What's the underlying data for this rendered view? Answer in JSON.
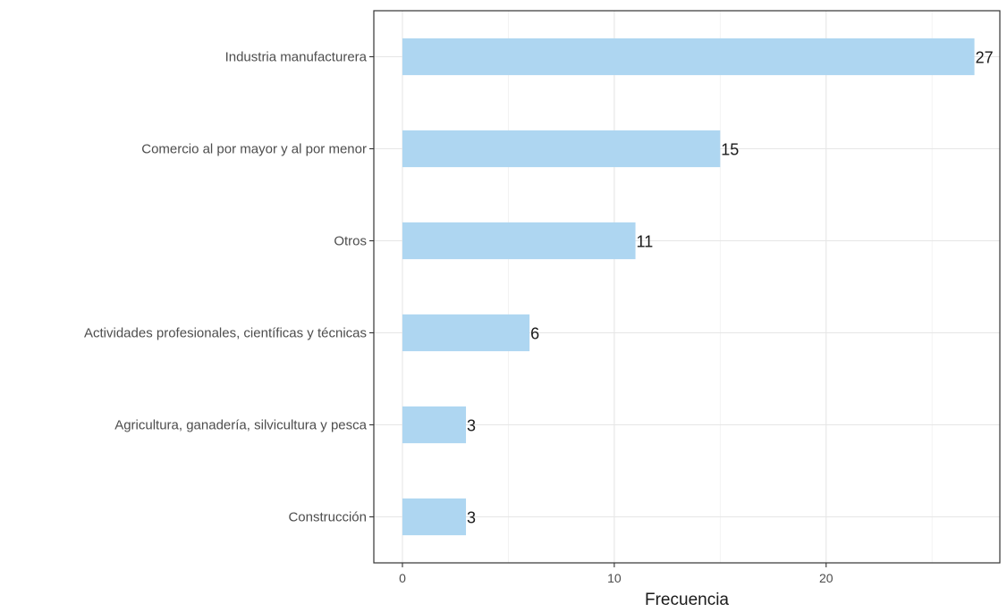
{
  "chart_data": {
    "type": "bar",
    "orientation": "horizontal",
    "categories": [
      "Industria manufacturera",
      "Comercio al por mayor y al por menor",
      "Otros",
      "Actividades profesionales, científicas y técnicas",
      "Agricultura, ganadería, silvicultura y pesca",
      "Construcción"
    ],
    "values": [
      27,
      15,
      11,
      6,
      3,
      3
    ],
    "data_labels": [
      "27",
      "15",
      "11",
      "6",
      "3",
      "3"
    ],
    "xlabel": "Frecuencia",
    "ylabel": "",
    "xlim": [
      -1.35,
      28.2
    ],
    "x_ticks": [
      0,
      10,
      20
    ],
    "x_tick_labels": [
      "0",
      "10",
      "20"
    ],
    "grid": true,
    "bar_color": "#aed6f1",
    "legend": "none"
  }
}
